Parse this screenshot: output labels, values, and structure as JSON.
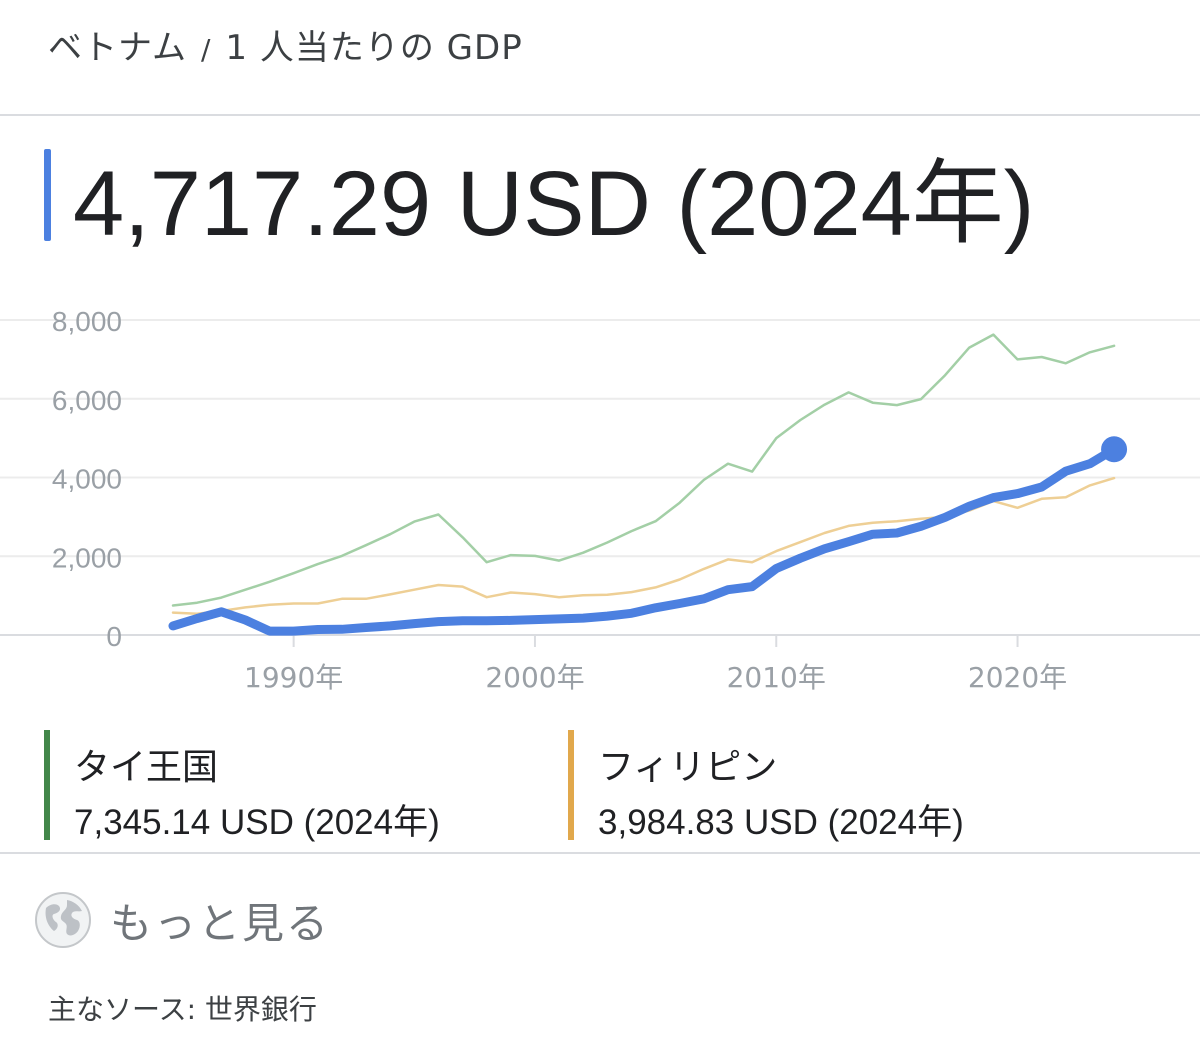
{
  "breadcrumb": {
    "country": "ベトナム",
    "separator": "/",
    "indicator": "1 人当たりの GDP"
  },
  "headline": {
    "value": "4,717.29 USD (2024年)",
    "accent": "#4c80e0"
  },
  "legend": [
    {
      "name": "タイ王国",
      "value": "7,345.14 USD (2024年)",
      "color": "#43874a"
    },
    {
      "name": "フィリピン",
      "value": "3,984.83 USD (2024年)",
      "color": "#e1a84c"
    }
  ],
  "more": {
    "label": "もっと見る",
    "icon": "globe-icon"
  },
  "source": "主なソース: 世界銀行",
  "chart_data": {
    "type": "line",
    "ylim": [
      0,
      8000
    ],
    "yticks": [
      "0",
      "2,000",
      "4,000",
      "6,000",
      "8,000"
    ],
    "xticks": [
      {
        "year": 1990,
        "label": "1990年"
      },
      {
        "year": 2000,
        "label": "2000年"
      },
      {
        "year": 2010,
        "label": "2010年"
      },
      {
        "year": 2020,
        "label": "2020年"
      }
    ],
    "x": [
      1985,
      1986,
      1987,
      1988,
      1989,
      1990,
      1991,
      1992,
      1993,
      1994,
      1995,
      1996,
      1997,
      1998,
      1999,
      2000,
      2001,
      2002,
      2003,
      2004,
      2005,
      2006,
      2007,
      2008,
      2009,
      2010,
      2011,
      2012,
      2013,
      2014,
      2015,
      2016,
      2017,
      2018,
      2019,
      2020,
      2021,
      2022,
      2023,
      2024
    ],
    "series": [
      {
        "name": "タイ王国",
        "color": "#a3cfa6",
        "values": [
          750,
          820,
          950,
          1150,
          1350,
          1570,
          1800,
          2010,
          2280,
          2560,
          2880,
          3060,
          2480,
          1850,
          2030,
          2010,
          1890,
          2090,
          2350,
          2640,
          2890,
          3360,
          3940,
          4350,
          4150,
          5000,
          5460,
          5850,
          6160,
          5900,
          5840,
          5990,
          6600,
          7300,
          7630,
          7000,
          7060,
          6900,
          7180,
          7345
        ]
      },
      {
        "name": "フィリピン",
        "color": "#eecf95",
        "values": [
          570,
          540,
          610,
          700,
          770,
          800,
          800,
          920,
          920,
          1030,
          1150,
          1270,
          1230,
          960,
          1080,
          1040,
          960,
          1010,
          1020,
          1090,
          1210,
          1410,
          1680,
          1920,
          1850,
          2130,
          2360,
          2590,
          2770,
          2850,
          2890,
          2950,
          3000,
          3160,
          3400,
          3230,
          3460,
          3500,
          3800,
          3985
        ]
      },
      {
        "name": "ベトナム",
        "color": "#4c80e0",
        "values": [
          230,
          420,
          590,
          380,
          100,
          100,
          140,
          145,
          190,
          230,
          290,
          340,
          360,
          360,
          370,
          390,
          410,
          430,
          480,
          550,
          690,
          800,
          920,
          1150,
          1230,
          1690,
          1950,
          2190,
          2370,
          2560,
          2590,
          2760,
          2990,
          3270,
          3490,
          3590,
          3760,
          4160,
          4350,
          4717
        ]
      }
    ]
  }
}
